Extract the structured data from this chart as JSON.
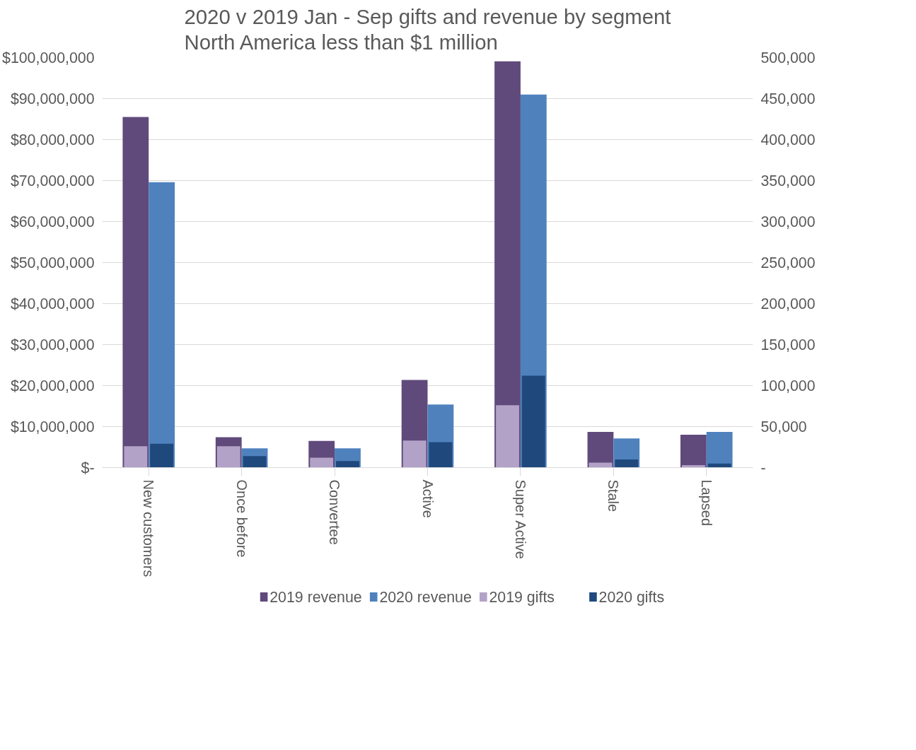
{
  "chart_data": {
    "type": "bar",
    "title": "2020 v 2019 Jan - Sep gifts and revenue by segment North America less than $1 million",
    "categories": [
      "New customers",
      "Once before",
      "Convertee",
      "Active",
      "Super Active",
      "Stale",
      "Lapsed"
    ],
    "series": [
      {
        "name": "2019 revenue",
        "color": "#604a7b",
        "values": [
          85500000,
          7400000,
          6500000,
          21400000,
          99100000,
          8700000,
          8000000
        ]
      },
      {
        "name": "2020  revenue",
        "color": "#4f81bd",
        "values": [
          69600000,
          4700000,
          4700000,
          15400000,
          91000000,
          7100000,
          8700000
        ]
      },
      {
        "name": "2019 gifts",
        "color": "#b3a2c7",
        "axis": "y2",
        "values": [
          26000,
          26000,
          12000,
          33000,
          76000,
          6000,
          3000
        ]
      },
      {
        "name": "2020 gifts",
        "color": "#1f497d",
        "axis": "y2",
        "values": [
          29000,
          14000,
          8000,
          31000,
          112000,
          10000,
          5000
        ]
      }
    ],
    "ylim": [
      0,
      100000000
    ],
    "yticks": [
      {
        "value": 0,
        "label": "$-"
      },
      {
        "value": 10000000,
        "label": "$10,000,000"
      },
      {
        "value": 20000000,
        "label": "$20,000,000"
      },
      {
        "value": 30000000,
        "label": "$30,000,000"
      },
      {
        "value": 40000000,
        "label": "$40,000,000"
      },
      {
        "value": 50000000,
        "label": "$50,000,000"
      },
      {
        "value": 60000000,
        "label": "$60,000,000"
      },
      {
        "value": 70000000,
        "label": "$70,000,000"
      },
      {
        "value": 80000000,
        "label": "$80,000,000"
      },
      {
        "value": 90000000,
        "label": "$90,000,000"
      },
      {
        "value": 100000000,
        "label": "$100,000,000"
      }
    ],
    "y2lim": [
      0,
      500000
    ],
    "y2ticks": [
      {
        "value": 0,
        "label": "-"
      },
      {
        "value": 50000,
        "label": "50,000"
      },
      {
        "value": 100000,
        "label": "100,000"
      },
      {
        "value": 150000,
        "label": "150,000"
      },
      {
        "value": 200000,
        "label": "200,000"
      },
      {
        "value": 250000,
        "label": "250,000"
      },
      {
        "value": 300000,
        "label": "300,000"
      },
      {
        "value": 350000,
        "label": "350,000"
      },
      {
        "value": 400000,
        "label": "400,000"
      },
      {
        "value": 450000,
        "label": "450,000"
      },
      {
        "value": 500000,
        "label": "500,000"
      }
    ],
    "grid": "y",
    "legend": "bottom"
  }
}
